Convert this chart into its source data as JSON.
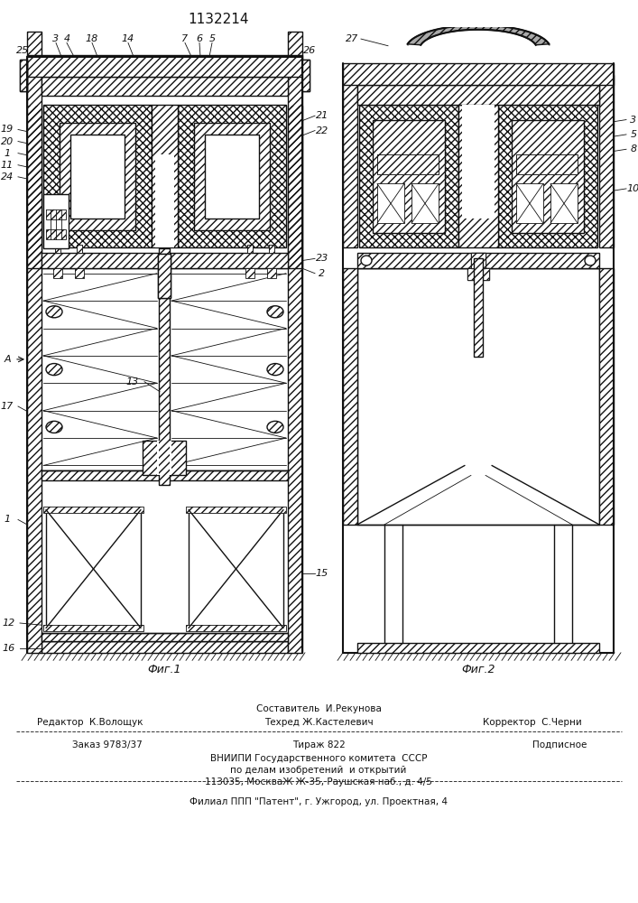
{
  "patent_number": "1132214",
  "fig1_label": "Фиг.1",
  "fig2_label": "Фиг.2",
  "footer_line1_center": "Составитель  И.Рекунова",
  "footer_line2_left": "Редактор  К.Волощук",
  "footer_line2_center": "Техред Ж.Кастелевич",
  "footer_line2_right": "Корректор  С.Черни",
  "footer_line3_left": "Заказ 9783/37",
  "footer_line3_center": "Тираж 822",
  "footer_line3_right": "Подписное",
  "footer_line4": "ВНИИПИ Государственного комитета  СССР",
  "footer_line5": "по делам изобретений  и открытий",
  "footer_line6": "113035, МоскваЖ Ж-35, Раушская наб., д. 4/5",
  "footer_line7": "Филиал ППП \"Патент\", г. Ужгород, ул. Проектная, 4"
}
